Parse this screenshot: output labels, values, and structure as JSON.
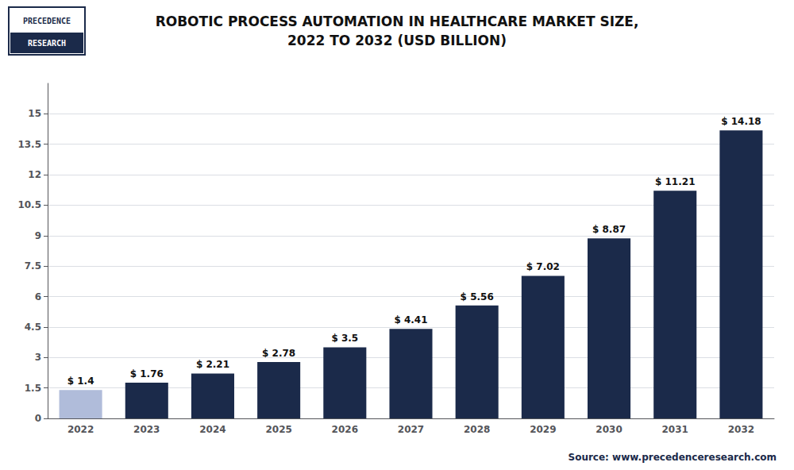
{
  "chart_data": {
    "type": "bar",
    "title": "ROBOTIC PROCESS AUTOMATION IN HEALTHCARE MARKET SIZE,\n2022 TO 2032 (USD BILLION)",
    "categories": [
      "2022",
      "2023",
      "2024",
      "2025",
      "2026",
      "2027",
      "2028",
      "2029",
      "2030",
      "2031",
      "2032"
    ],
    "values": [
      1.4,
      1.76,
      2.21,
      2.78,
      3.5,
      4.41,
      5.56,
      7.02,
      8.87,
      11.21,
      14.18
    ],
    "value_labels": [
      "$ 1.4",
      "$ 1.76",
      "$ 2.21",
      "$ 2.78",
      "$ 3.5",
      "$ 4.41",
      "$ 5.56",
      "$ 7.02",
      "$ 8.87",
      "$ 11.21",
      "$ 14.18"
    ],
    "data_labels": true,
    "colors": [
      "#b0bcda",
      "#1b2a4a",
      "#1b2a4a",
      "#1b2a4a",
      "#1b2a4a",
      "#1b2a4a",
      "#1b2a4a",
      "#1b2a4a",
      "#1b2a4a",
      "#1b2a4a",
      "#1b2a4a"
    ],
    "ylim": [
      0,
      16.5
    ],
    "yticks": [
      0,
      1.5,
      3,
      4.5,
      6,
      7.5,
      9,
      10.5,
      12,
      13.5,
      15
    ],
    "grid": true,
    "annotations": [
      "Source: www.precedenceresearch.com",
      "PRECEDENCE",
      "RESEARCH"
    ]
  }
}
